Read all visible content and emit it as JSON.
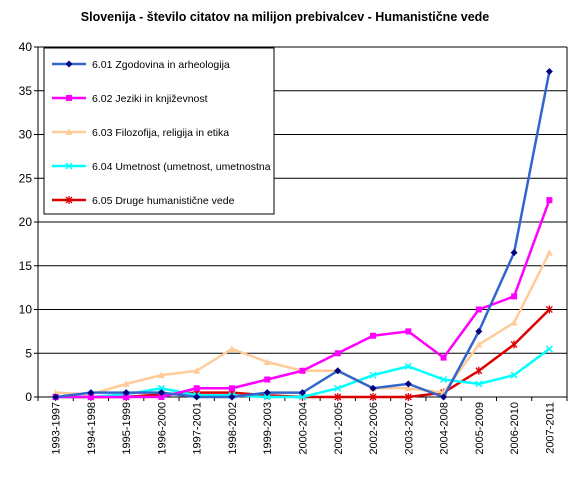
{
  "chart_data": {
    "type": "line",
    "title": "Slovenija - število citatov na milijon prebivalcev - Humanistične vede",
    "xlabel": "",
    "ylabel": "",
    "ylim": [
      0,
      40
    ],
    "yticks": [
      0,
      5,
      10,
      15,
      20,
      25,
      30,
      35,
      40
    ],
    "grid": true,
    "legend_position": "top-left",
    "categories": [
      "1993-1997",
      "1994-1998",
      "1995-1999",
      "1996-2000",
      "1997-2001",
      "1998-2002",
      "1999-2003",
      "2000-2004",
      "2001-2005",
      "2002-2006",
      "2003-2007",
      "2004-2008",
      "2005-2009",
      "2006-2010",
      "2007-2011"
    ],
    "series": [
      {
        "name": "6.01 Zgodovina in arheologija",
        "color": "#3366CC",
        "marker": "diamond",
        "values": [
          0,
          0.5,
          0.5,
          0.5,
          0,
          0,
          0.5,
          0.5,
          3,
          1,
          1.5,
          0,
          7.5,
          16.5,
          37.2
        ]
      },
      {
        "name": "6.02 Jeziki in književnost",
        "color": "#FF00FF",
        "marker": "square",
        "values": [
          0,
          0,
          0,
          0,
          1,
          1,
          2,
          3,
          5,
          7,
          7.5,
          4.5,
          10,
          11.5,
          22.5
        ]
      },
      {
        "name": "6.03 Filozofija, religija in etika",
        "color": "#FFCC99",
        "marker": "triangle",
        "values": [
          0.5,
          0.3,
          1.5,
          2.5,
          3,
          5.5,
          4,
          3,
          3,
          1,
          1,
          0.5,
          6,
          8.5,
          16.5
        ]
      },
      {
        "name": "6.04 Umetnost (umetnost, umetnostna",
        "color": "#00FFFF",
        "marker": "x",
        "values": [
          0,
          0,
          0.3,
          1,
          0.2,
          0.2,
          0,
          0,
          1,
          2.5,
          3.5,
          2,
          1.5,
          2.5,
          5.5
        ]
      },
      {
        "name": "6.05 Druge humanistične vede",
        "color": "#DD0000",
        "marker": "star",
        "values": [
          0,
          0,
          0,
          0.3,
          0.5,
          0.5,
          0.2,
          0,
          0,
          0,
          0,
          0.5,
          3,
          6,
          10
        ]
      }
    ]
  }
}
